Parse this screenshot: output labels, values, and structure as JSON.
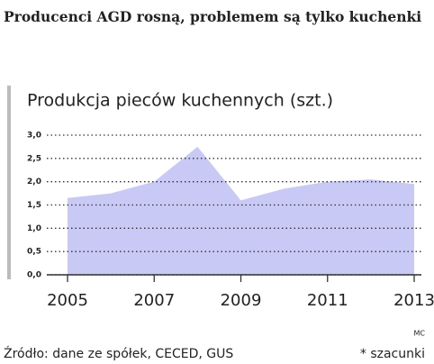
{
  "chart_data": {
    "type": "area",
    "title": "Producenci AGD rosną, problemem są tylko kuchenki",
    "subtitle": "Produkcja pieców kuchennych (szt.)",
    "x": [
      2005,
      2006,
      2007,
      2008,
      2009,
      2010,
      2011,
      2012,
      2013
    ],
    "values": [
      1.65,
      1.75,
      2.0,
      2.75,
      1.6,
      1.85,
      2.0,
      2.05,
      1.95
    ],
    "color": "#c9c9f6",
    "xlim": [
      2005,
      2013
    ],
    "xticks": [
      2005,
      2007,
      2009,
      2011,
      2013
    ],
    "ylim": [
      0,
      3
    ],
    "yticks": [
      {
        "value": 0,
        "label": "0,0"
      },
      {
        "value": 0.5,
        "label": "0,5"
      },
      {
        "value": 1,
        "label": "1,0"
      },
      {
        "value": 1.5,
        "label": "1,5"
      },
      {
        "value": 2,
        "label": "2,0"
      },
      {
        "value": 2.5,
        "label": "2,5"
      },
      {
        "value": 3,
        "label": "3,0"
      }
    ],
    "grid": true,
    "credit": "MC",
    "source": "Źródło: dane ze spółek, CECED, GUS",
    "note": "* szacunki"
  }
}
